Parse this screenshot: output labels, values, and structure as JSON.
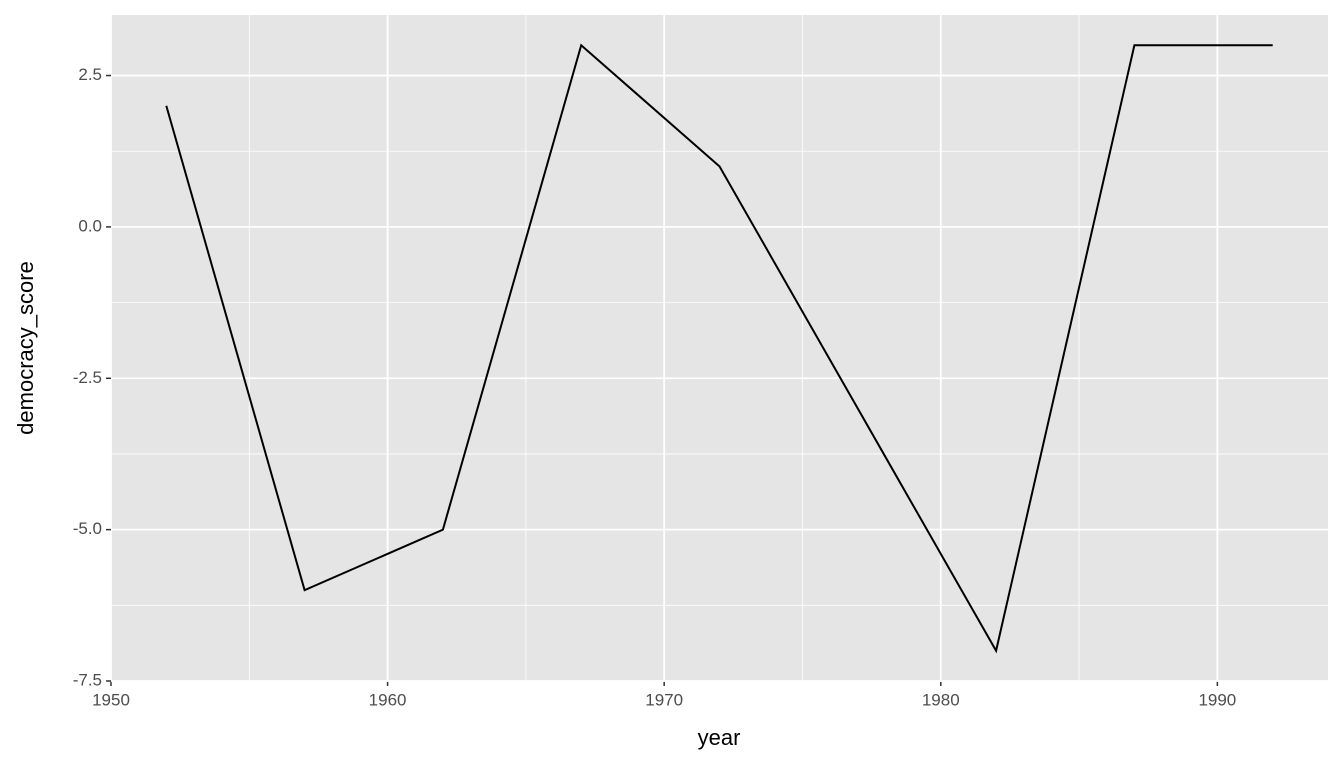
{
  "chart_data": {
    "type": "line",
    "x_label": "year",
    "y_label": "democracy_score",
    "x": [
      1952,
      1957,
      1962,
      1967,
      1972,
      1977,
      1982,
      1987,
      1992
    ],
    "series": [
      {
        "color": "#000000",
        "values": [
          2,
          -6,
          -5,
          3,
          1,
          -3,
          -7,
          3,
          3
        ]
      }
    ],
    "xlim": [
      1950,
      1994
    ],
    "ylim": [
      -7.5,
      3.5
    ],
    "xticks": [
      1950,
      1960,
      1970,
      1980,
      1990
    ],
    "yticks": [
      2.5,
      {
        "value": 0,
        "label": "0.0"
      },
      -2.5,
      {
        "value": -5,
        "label": "-5.0"
      },
      -7.5
    ],
    "xminorticks": [
      1955,
      1965,
      1975,
      1985
    ],
    "yminorticks": [
      1.25,
      -1.25,
      -3.75,
      -6.25
    ],
    "grid": true,
    "panel_color": "#e5e5e5"
  }
}
